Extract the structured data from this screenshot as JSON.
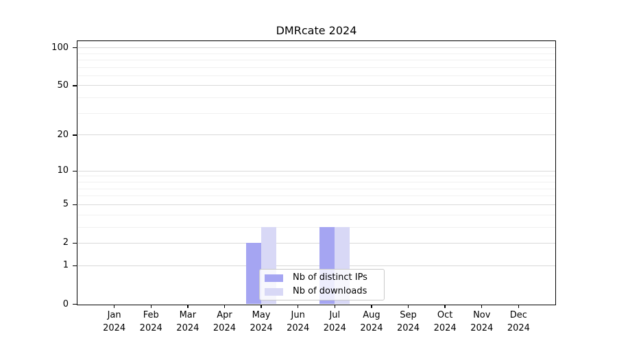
{
  "title": "DMRcate 2024",
  "chart_data": {
    "type": "bar",
    "title": "DMRcate 2024",
    "categories": [
      "Jan",
      "Feb",
      "Mar",
      "Apr",
      "May",
      "Jun",
      "Jul",
      "Aug",
      "Sep",
      "Oct",
      "Nov",
      "Dec"
    ],
    "year": "2024",
    "series": [
      {
        "name": "Nb of distinct IPs",
        "color": "#a5a5f2",
        "values": [
          0,
          0,
          0,
          0,
          2,
          0,
          3,
          0,
          0,
          0,
          0,
          0
        ]
      },
      {
        "name": "Nb of downloads",
        "color": "#d8d8f6",
        "values": [
          0,
          0,
          0,
          0,
          3,
          0,
          3,
          0,
          0,
          0,
          0,
          0
        ]
      }
    ],
    "yscale": "log1p",
    "ylim": [
      0,
      111
    ],
    "yticks": [
      0,
      1,
      2,
      5,
      10,
      20,
      50,
      100
    ],
    "yminorticks": [
      3,
      4,
      6,
      7,
      8,
      9,
      30,
      40,
      60,
      70,
      80,
      90
    ],
    "xlabel": "",
    "ylabel": "",
    "grid": "horizontal",
    "legend_position": "inside-bottom-center",
    "colors": {
      "grid_major": "#d9d9d9",
      "grid_minor": "#f0f0f0",
      "frame": "#000000",
      "background": "#ffffff"
    }
  }
}
